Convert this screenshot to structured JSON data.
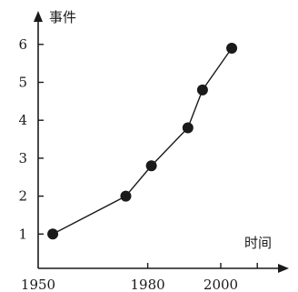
{
  "chart_data": {
    "type": "line",
    "x": [
      1954,
      1974,
      1981,
      1991,
      1995,
      2003
    ],
    "values": [
      1,
      2,
      2.8,
      3.8,
      4.8,
      5.9
    ],
    "xlabel": "时间",
    "ylabel": "事件",
    "xticks": [
      1950,
      1980,
      2000
    ],
    "yticks": [
      1,
      2,
      3,
      4,
      5,
      6
    ],
    "xlim": [
      1950,
      2015
    ],
    "ylim": [
      0,
      6.6
    ]
  }
}
